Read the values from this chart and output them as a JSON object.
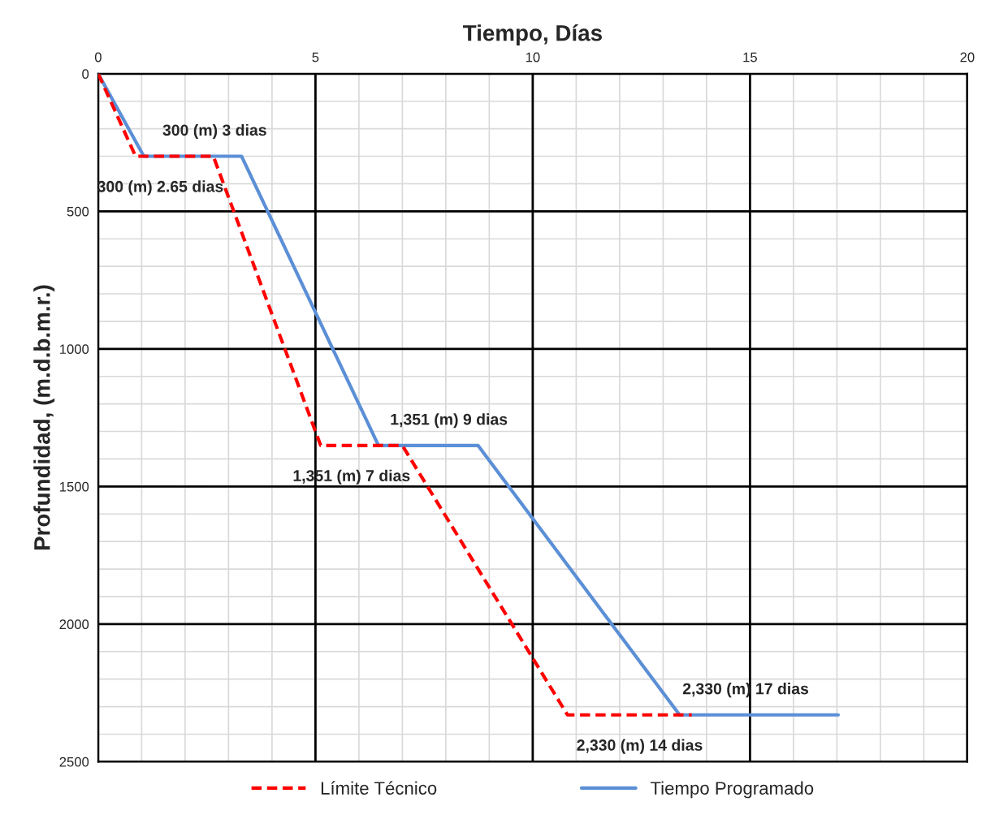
{
  "chart_data": {
    "type": "line",
    "xlabel": "Tiempo, Días",
    "ylabel": "Profundidad, (m.d.b.m.r.)",
    "xlim": [
      0,
      20
    ],
    "xticks": [
      0,
      5,
      10,
      15,
      20
    ],
    "ylim": [
      2500,
      0
    ],
    "yticks": [
      0,
      500,
      1000,
      1500,
      2000,
      2500
    ],
    "grid": true,
    "legend": "bottom",
    "marker": "none",
    "series": [
      {
        "name": "Límite Técnico",
        "color": "#ff0000",
        "line_style": "dashed",
        "x": [
          0,
          0.86,
          2.65,
          5.12,
          7.0,
          10.8,
          13.66
        ],
        "values": [
          0,
          300,
          300,
          1351,
          1351,
          2330,
          2330
        ]
      },
      {
        "name": "Tiempo Programado",
        "color": "#5b8fd6",
        "line_style": "solid",
        "x": [
          0,
          1.05,
          3.3,
          6.45,
          8.74,
          13.38,
          17.03
        ],
        "values": [
          0,
          300,
          300,
          1351,
          1351,
          2330,
          2330
        ]
      }
    ],
    "annotations": [
      {
        "text": "300 (m) 3 dias",
        "x": 2.68,
        "y": 300
      },
      {
        "text": "300 (m) 2.65 dias",
        "x": 1.43,
        "y": 300
      },
      {
        "text": "1,351 (m) 9 dias",
        "x": 8.07,
        "y": 1351
      },
      {
        "text": "1,351 (m) 7 dias",
        "x": 5.83,
        "y": 1351
      },
      {
        "text": "2,330 (m) 17 dias",
        "x": 14.9,
        "y": 2330
      },
      {
        "text": "2,330 (m) 14 dias",
        "x": 12.46,
        "y": 2330
      }
    ]
  }
}
